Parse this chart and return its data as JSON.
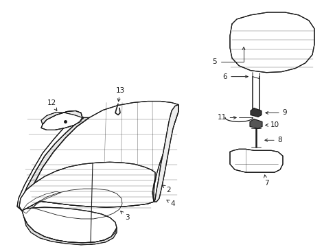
{
  "bg_color": "#ffffff",
  "lc": "#1a1a1a",
  "lw": 0.85,
  "fs": 7.5,
  "figw": 4.89,
  "figh": 3.6,
  "dpi": 100
}
